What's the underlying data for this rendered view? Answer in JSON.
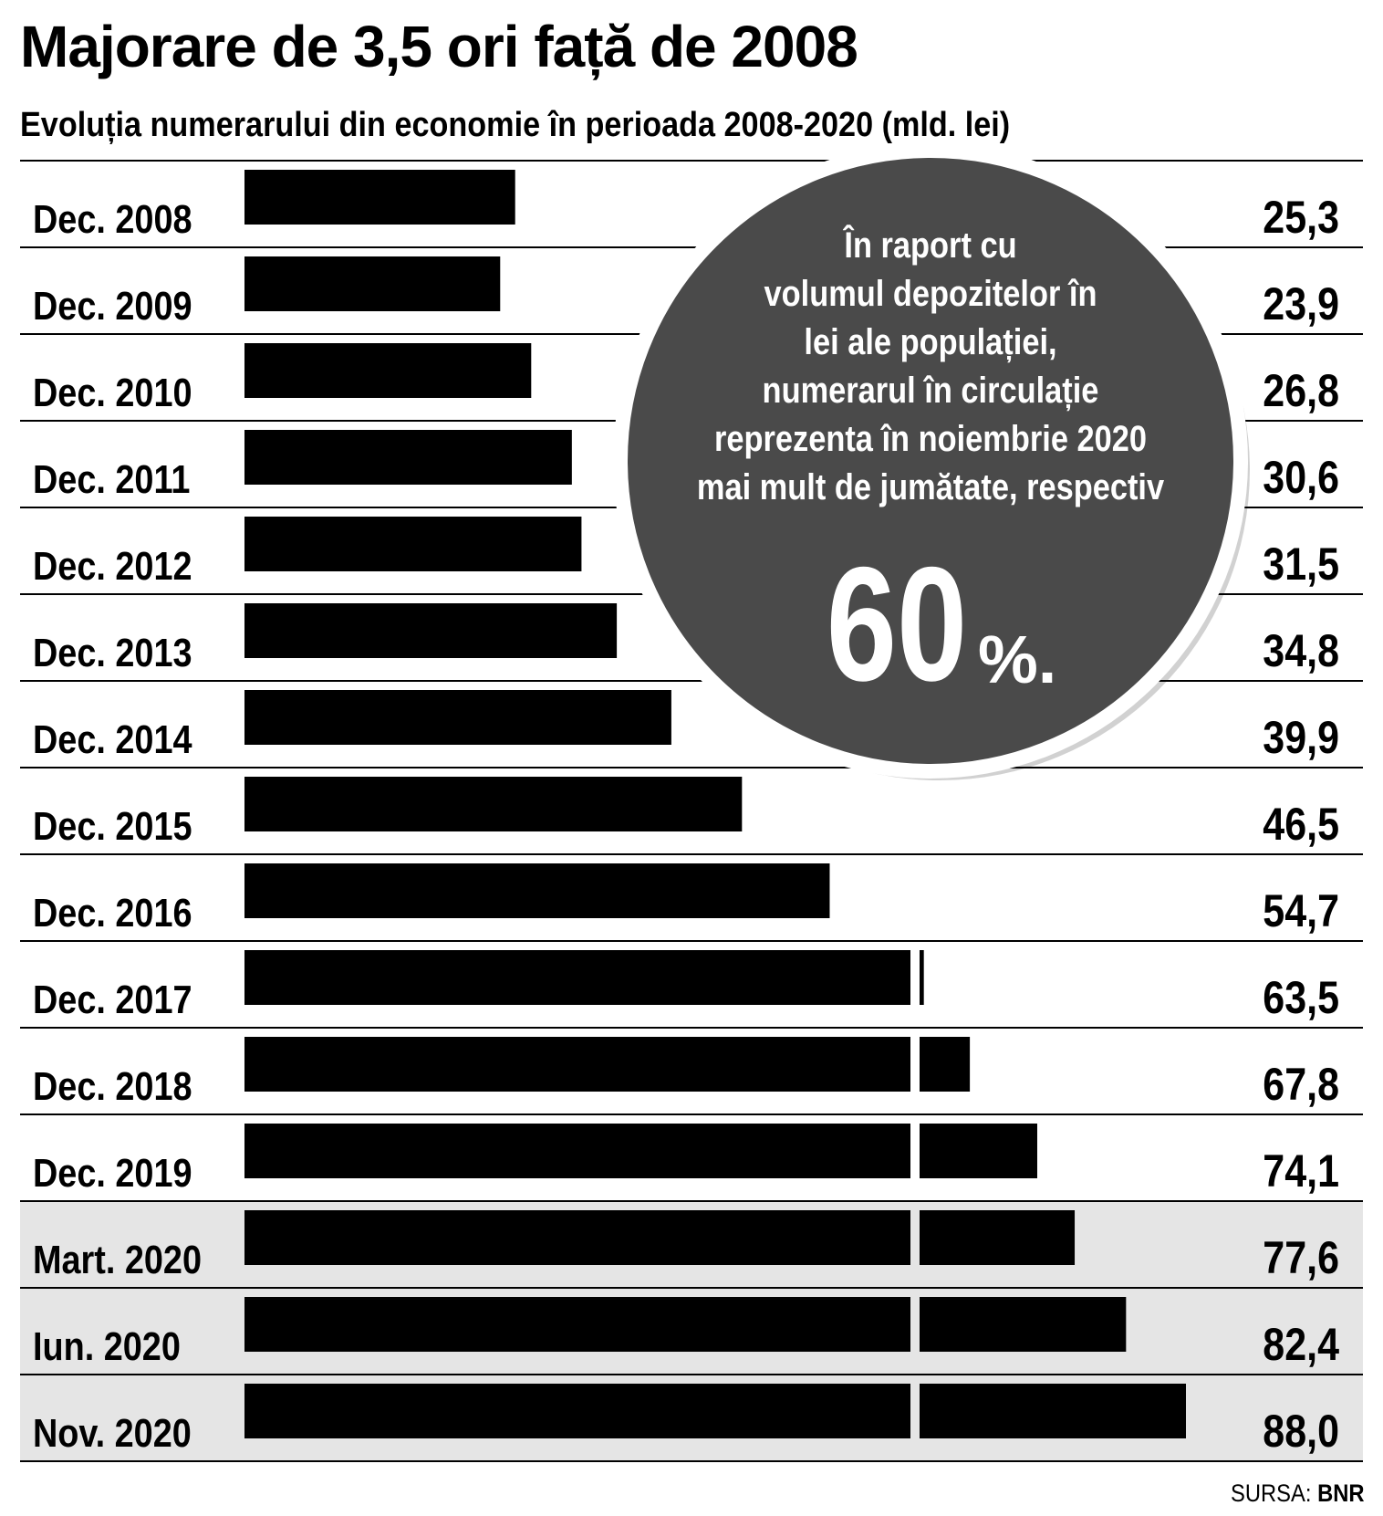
{
  "title": "Majorare de 3,5 ori față de 2008",
  "subtitle": "Evoluția numerarului din economie în perioada 2008-2020 (mld. lei)",
  "source": {
    "label": "SURSA:",
    "name": "BNR"
  },
  "callout": {
    "lines": [
      "În raport cu",
      "volumul depozitelor în",
      "lei ale populației,",
      "numerarul în circulație",
      "reprezenta în noiembrie 2020",
      "mai mult de jumătate, respectiv"
    ],
    "big_number": "60",
    "unit": "%.",
    "circle_color": "#4a4a4a",
    "text_color": "#ffffff"
  },
  "chart_data": {
    "type": "bar",
    "orientation": "horizontal",
    "title": "Majorare de 3,5 ori față de 2008",
    "subtitle": "Evoluția numerarului din economie în perioada 2008-2020 (mld. lei)",
    "xlabel": "",
    "ylabel": "",
    "xlim": [
      0,
      88
    ],
    "grid": false,
    "bar_color": "#000000",
    "highlight_row_color": "#e5e5e5",
    "categories": [
      "Dec. 2008",
      "Dec. 2009",
      "Dec. 2010",
      "Dec. 2011",
      "Dec. 2012",
      "Dec. 2013",
      "Dec. 2014",
      "Dec. 2015",
      "Dec. 2016",
      "Dec. 2017",
      "Dec. 2018",
      "Dec. 2019",
      "Mart. 2020",
      "Iun. 2020",
      "Nov. 2020"
    ],
    "values": [
      25.3,
      23.9,
      26.8,
      30.6,
      31.5,
      34.8,
      39.9,
      46.5,
      54.7,
      63.5,
      67.8,
      74.1,
      77.6,
      82.4,
      88.0
    ],
    "value_labels": [
      "25,3",
      "23,9",
      "26,8",
      "30,6",
      "31,5",
      "34,8",
      "39,9",
      "46,5",
      "54,7",
      "63,5",
      "67,8",
      "74,1",
      "77,6",
      "82,4",
      "88,0"
    ],
    "highlighted": [
      false,
      false,
      false,
      false,
      false,
      false,
      false,
      false,
      false,
      false,
      false,
      false,
      true,
      true,
      true
    ]
  }
}
